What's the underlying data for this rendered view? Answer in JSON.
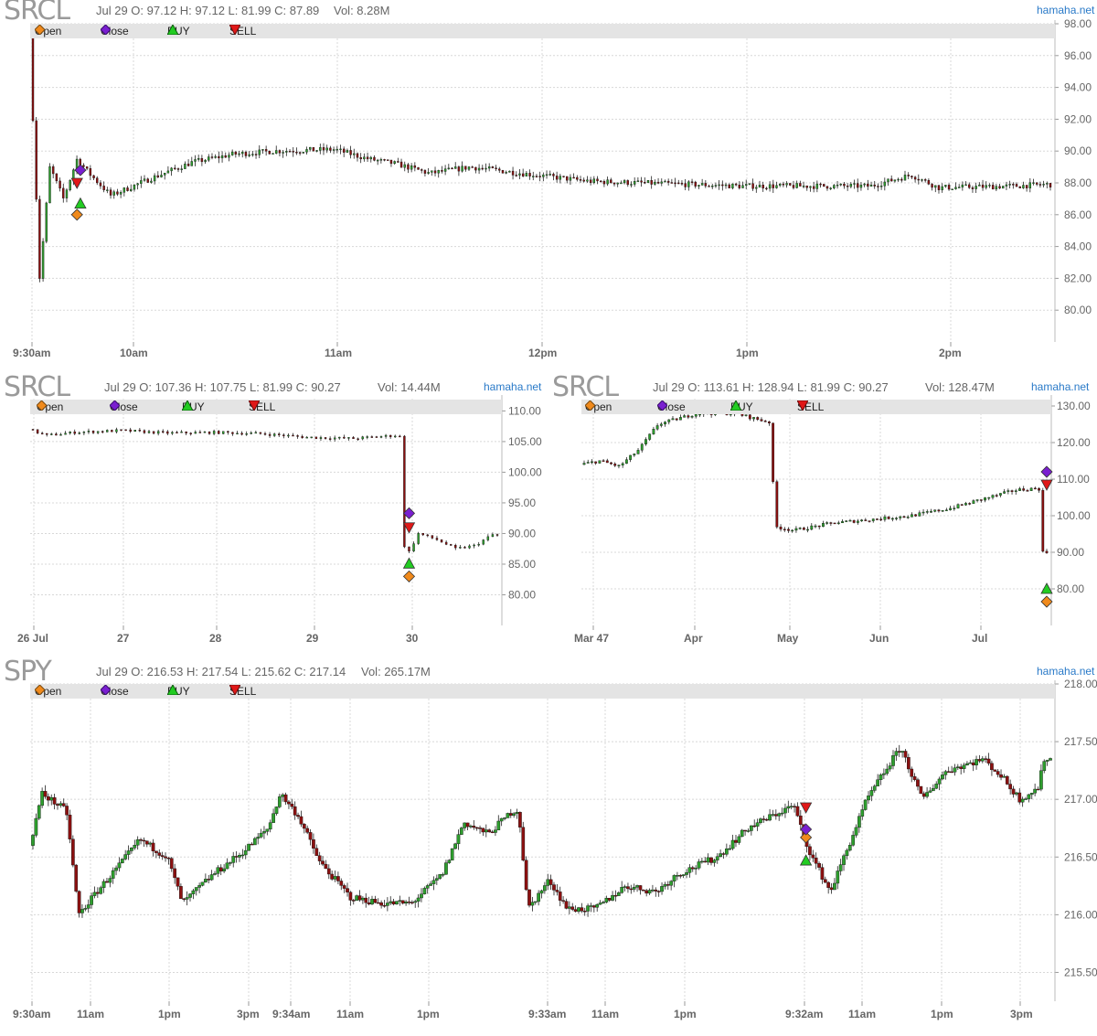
{
  "brand": "hamaha.net",
  "legend": {
    "open": "Open",
    "close": "Close",
    "buy": "BUY",
    "sell": "SELL"
  },
  "colors": {
    "open": "#f08a1c",
    "close": "#7a1fd0",
    "buy": "#22cc22",
    "sell": "#e01818",
    "up": "#2e9e2e",
    "down": "#8b1010"
  },
  "panels": [
    {
      "id": "p1",
      "symbol": "SRCL",
      "info": "Jul 29 O: 97.12 H: 97.12 L: 81.99 C: 87.89",
      "vol": "Vol: 8.28M"
    },
    {
      "id": "p2",
      "symbol": "SRCL",
      "info": "Jul 29 O: 107.36 H: 107.75 L: 81.99 C: 90.27",
      "vol": "Vol: 14.44M"
    },
    {
      "id": "p3",
      "symbol": "SRCL",
      "info": "Jul 29 O: 113.61 H: 128.94 L: 81.99 C: 90.27",
      "vol": "Vol: 128.47M"
    },
    {
      "id": "p4",
      "symbol": "SPY",
      "info": "Jul 29 O: 216.53 H: 217.54 L: 215.62 C: 217.14",
      "vol": "Vol: 265.17M"
    }
  ],
  "chart_data": [
    {
      "type": "candlestick",
      "symbol": "SRCL",
      "interval": "1 minute",
      "ylim": [
        78,
        98
      ],
      "yticks": [
        "98.00",
        "96.00",
        "94.00",
        "92.00",
        "90.00",
        "88.00",
        "86.00",
        "84.00",
        "82.00",
        "80.00"
      ],
      "xticks": [
        "9:30am",
        "10am",
        "11am",
        "12pm",
        "1pm",
        "2pm"
      ],
      "price_path": [
        [
          0,
          97.1
        ],
        [
          3,
          82
        ],
        [
          6,
          89
        ],
        [
          10,
          87
        ],
        [
          14,
          89.5
        ],
        [
          18,
          88.5
        ],
        [
          24,
          87.2
        ],
        [
          36,
          88.3
        ],
        [
          48,
          89.3
        ],
        [
          60,
          89.8
        ],
        [
          72,
          90
        ],
        [
          90,
          90.1
        ],
        [
          100,
          89.5
        ],
        [
          108,
          89.2
        ],
        [
          118,
          88.6
        ],
        [
          130,
          89
        ],
        [
          145,
          88.6
        ],
        [
          165,
          88.1
        ],
        [
          180,
          88
        ],
        [
          210,
          87.8
        ],
        [
          230,
          87.8
        ],
        [
          248,
          87.8
        ],
        [
          260,
          88.5
        ],
        [
          268,
          87.7
        ],
        [
          290,
          87.8
        ],
        [
          300,
          87.9
        ]
      ],
      "markers": [
        {
          "type": "open",
          "x": 13,
          "y": 86
        },
        {
          "type": "close",
          "x": 14,
          "y": 88.8
        },
        {
          "type": "buy",
          "x": 14,
          "y": 86.7
        },
        {
          "type": "sell",
          "x": 13,
          "y": 88
        }
      ]
    },
    {
      "type": "candlestick",
      "symbol": "SRCL",
      "interval": "intraday, multi-day",
      "ylim": [
        75,
        112
      ],
      "yticks": [
        "110.00",
        "105.00",
        "100.00",
        "95.00",
        "90.00",
        "85.00",
        "80.00"
      ],
      "xticks": [
        "26 Jul",
        "27",
        "28",
        "29",
        "30"
      ],
      "price_path": [
        [
          0,
          107
        ],
        [
          4,
          106
        ],
        [
          10,
          106.5
        ],
        [
          20,
          106.8
        ],
        [
          30,
          106.4
        ],
        [
          40,
          106.5
        ],
        [
          50,
          106.3
        ],
        [
          60,
          105.7
        ],
        [
          70,
          105.5
        ],
        [
          79,
          106
        ],
        [
          80,
          105.8
        ],
        [
          81,
          88
        ],
        [
          82,
          87
        ],
        [
          84,
          90
        ],
        [
          88,
          89
        ],
        [
          92,
          87.5
        ],
        [
          96,
          88
        ],
        [
          100,
          89.8
        ]
      ],
      "markers": [
        {
          "type": "open",
          "x": 81,
          "y": 83
        },
        {
          "type": "close",
          "x": 81,
          "y": 93.3
        },
        {
          "type": "buy",
          "x": 81,
          "y": 85.1
        },
        {
          "type": "sell",
          "x": 81,
          "y": 91
        }
      ]
    },
    {
      "type": "candlestick",
      "symbol": "SRCL",
      "interval": "daily",
      "ylim": [
        70,
        132
      ],
      "yticks": [
        "130.00",
        "120.00",
        "110.00",
        "100.00",
        "90.00",
        "80.00"
      ],
      "xticks": [
        "Mar 47",
        "Apr",
        "May",
        "Jun",
        "Jul"
      ],
      "price_path": [
        [
          0,
          114
        ],
        [
          5,
          115
        ],
        [
          10,
          113.5
        ],
        [
          15,
          118
        ],
        [
          20,
          125
        ],
        [
          30,
          128
        ],
        [
          40,
          128
        ],
        [
          45,
          126.5
        ],
        [
          49,
          125.5
        ],
        [
          50,
          97
        ],
        [
          55,
          96
        ],
        [
          65,
          98
        ],
        [
          75,
          99
        ],
        [
          85,
          100
        ],
        [
          95,
          102
        ],
        [
          105,
          105
        ],
        [
          112,
          107
        ],
        [
          118,
          107.5
        ],
        [
          119,
          90
        ]
      ],
      "markers": [
        {
          "type": "open",
          "x": 119,
          "y": 76.5
        },
        {
          "type": "close",
          "x": 119,
          "y": 112
        },
        {
          "type": "buy",
          "x": 119,
          "y": 80
        },
        {
          "type": "sell",
          "x": 119,
          "y": 108.5
        }
      ]
    },
    {
      "type": "candlestick",
      "symbol": "SPY",
      "interval": "1 minute, multi-day",
      "ylim": [
        215.25,
        218.0
      ],
      "yticks": [
        "218.00",
        "217.50",
        "217.00",
        "216.50",
        "216.00",
        "215.50"
      ],
      "xticks": [
        "9:30am",
        "11am",
        "1pm",
        "3pm",
        "9:34am",
        "11am",
        "1pm",
        "9:33am",
        "11am",
        "1pm",
        "9:32am",
        "11am",
        "1pm",
        "3pm"
      ],
      "price_path": [
        [
          0,
          216.6
        ],
        [
          4,
          217.05
        ],
        [
          12,
          216.9
        ],
        [
          16,
          216.0
        ],
        [
          22,
          216.2
        ],
        [
          30,
          216.45
        ],
        [
          36,
          216.65
        ],
        [
          45,
          216.5
        ],
        [
          50,
          216.1
        ],
        [
          60,
          216.35
        ],
        [
          70,
          216.55
        ],
        [
          78,
          216.75
        ],
        [
          82,
          217.05
        ],
        [
          88,
          216.85
        ],
        [
          95,
          216.45
        ],
        [
          105,
          216.15
        ],
        [
          115,
          216.1
        ],
        [
          125,
          216.1
        ],
        [
          135,
          216.35
        ],
        [
          142,
          216.8
        ],
        [
          150,
          216.7
        ],
        [
          158,
          216.9
        ],
        [
          160,
          216.9
        ],
        [
          163,
          216.05
        ],
        [
          170,
          216.3
        ],
        [
          176,
          216.05
        ],
        [
          185,
          216.05
        ],
        [
          195,
          216.25
        ],
        [
          205,
          216.2
        ],
        [
          212,
          216.35
        ],
        [
          225,
          216.5
        ],
        [
          235,
          216.75
        ],
        [
          250,
          216.95
        ],
        [
          253,
          216.7
        ],
        [
          256,
          216.5
        ],
        [
          262,
          216.2
        ],
        [
          268,
          216.6
        ],
        [
          274,
          217.0
        ],
        [
          280,
          217.25
        ],
        [
          285,
          217.45
        ],
        [
          292,
          217.0
        ],
        [
          300,
          217.25
        ],
        [
          312,
          217.35
        ],
        [
          318,
          217.2
        ],
        [
          324,
          217.0
        ],
        [
          330,
          217.1
        ],
        [
          332,
          217.35
        ]
      ],
      "markers": [
        {
          "type": "open",
          "x": 253,
          "y": 216.67
        },
        {
          "type": "close",
          "x": 253,
          "y": 216.74
        },
        {
          "type": "buy",
          "x": 253,
          "y": 216.47
        },
        {
          "type": "sell",
          "x": 253,
          "y": 216.93
        }
      ]
    }
  ]
}
